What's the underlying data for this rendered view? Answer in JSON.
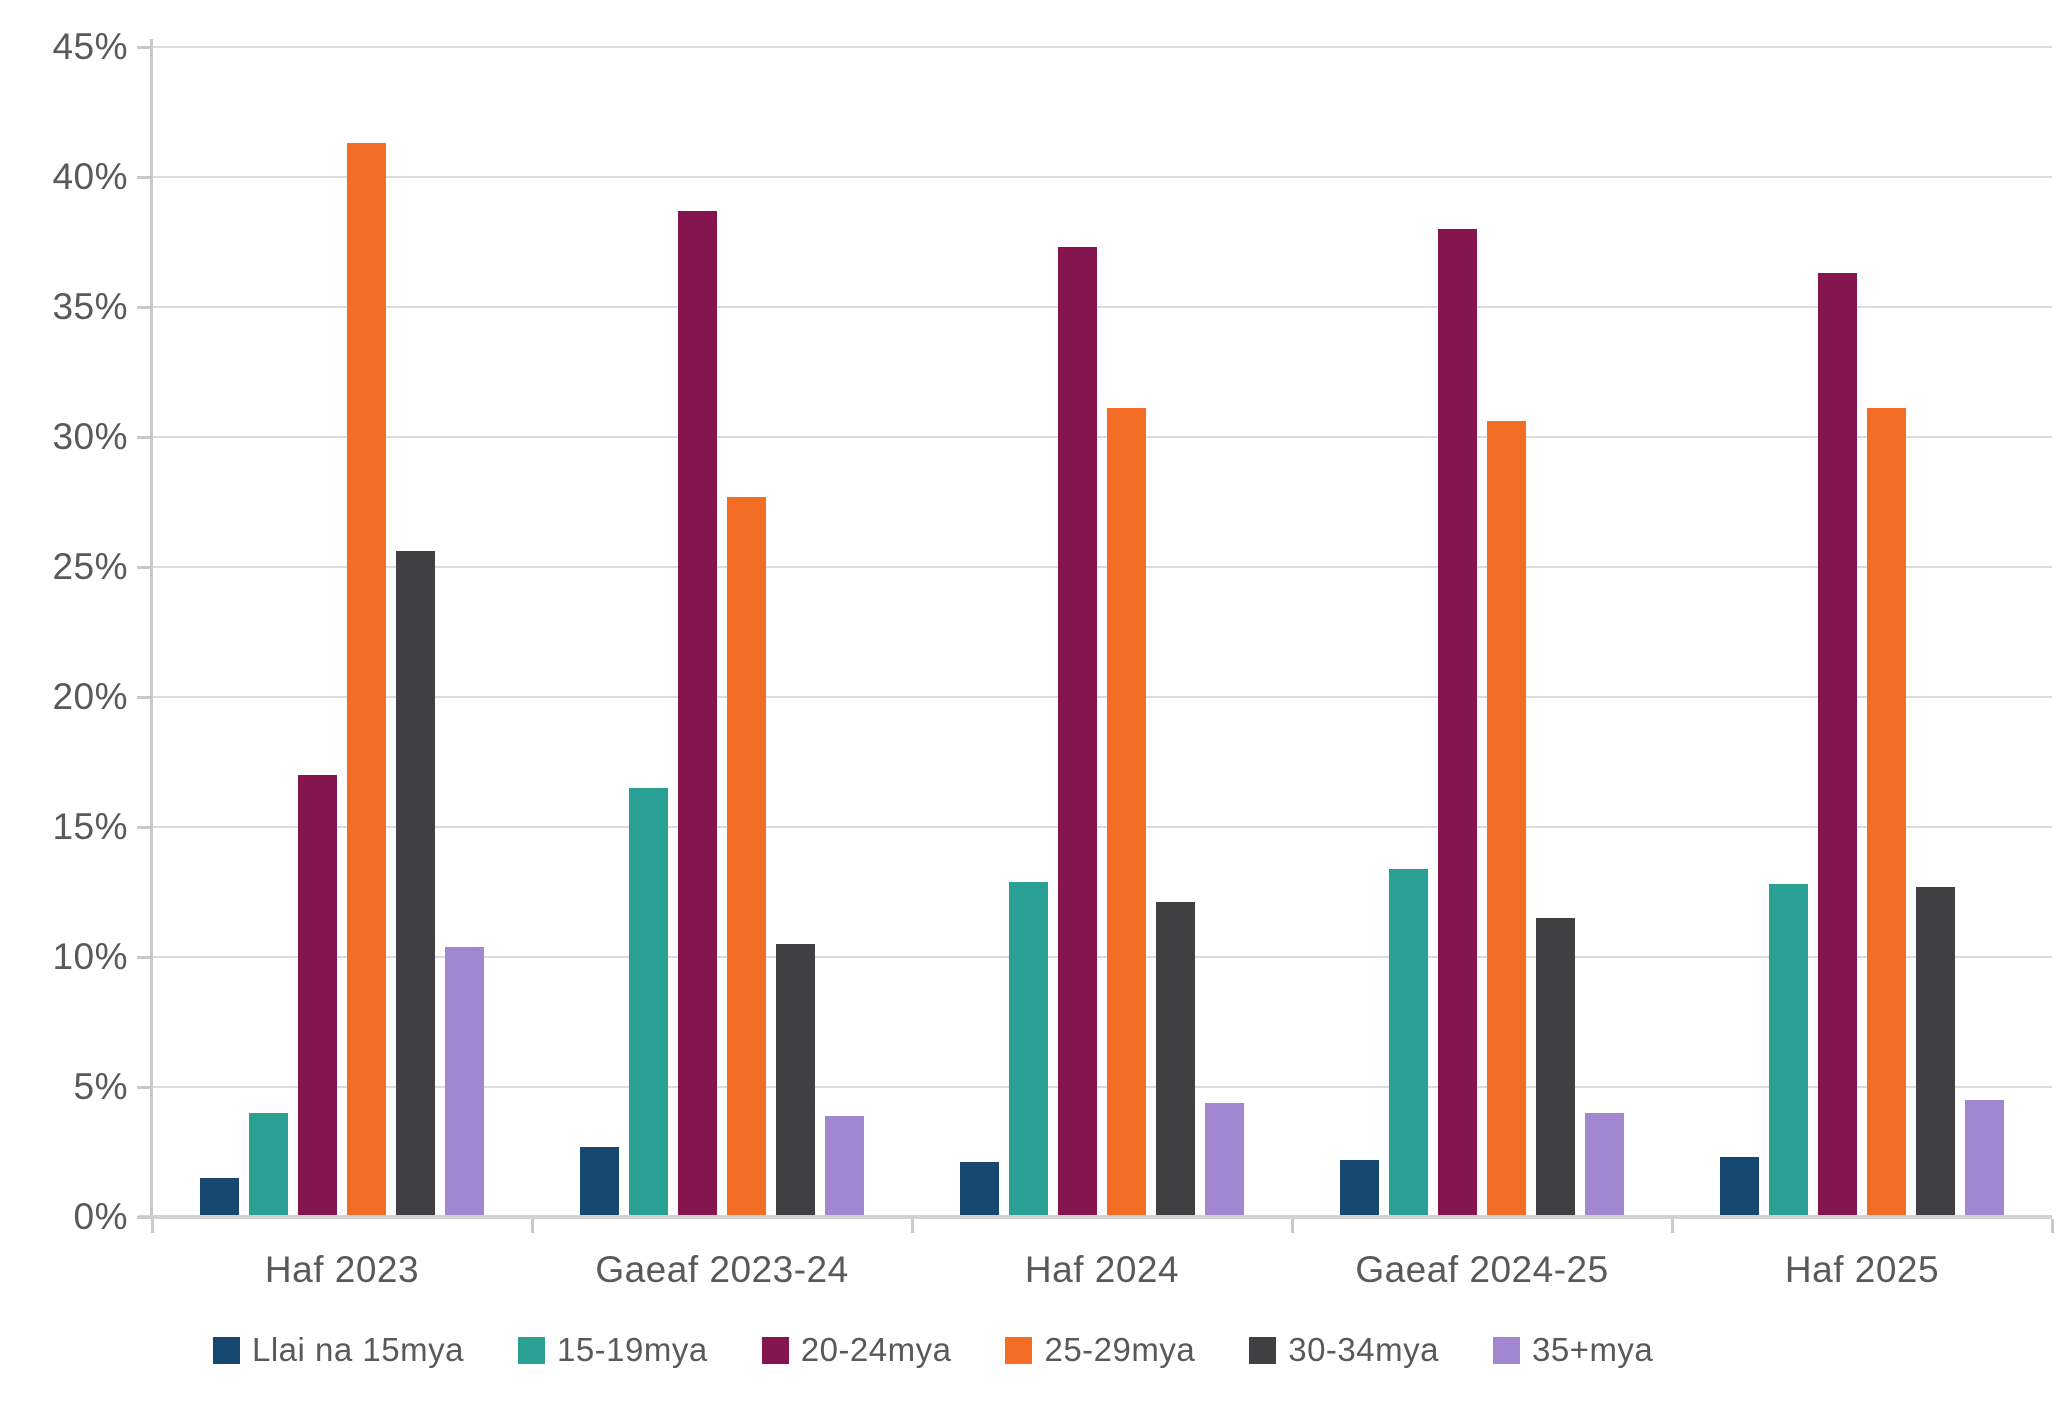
{
  "chart_data": {
    "type": "bar",
    "title": "",
    "xlabel": "",
    "ylabel": "",
    "grid": true,
    "legend_position": "bottom",
    "ylim": [
      0,
      45
    ],
    "ytick_step": 5,
    "ytick_labels": [
      "0%",
      "5%",
      "10%",
      "15%",
      "20%",
      "25%",
      "30%",
      "35%",
      "40%",
      "45%"
    ],
    "categories": [
      "Haf 2023",
      "Gaeaf 2023-24",
      "Haf 2024",
      "Gaeaf 2024-25",
      "Haf 2025"
    ],
    "series": [
      {
        "name": "Llai na 15mya",
        "color": "#17486F",
        "values": [
          1.5,
          2.7,
          2.1,
          2.2,
          2.3
        ]
      },
      {
        "name": "15-19mya",
        "color": "#2AA094",
        "values": [
          4.0,
          16.5,
          12.9,
          13.4,
          12.8
        ]
      },
      {
        "name": "20-24mya",
        "color": "#85154F",
        "values": [
          17.0,
          38.7,
          37.3,
          38.0,
          36.3
        ]
      },
      {
        "name": "25-29mya",
        "color": "#F36D24",
        "values": [
          41.3,
          27.7,
          31.1,
          30.6,
          31.1
        ]
      },
      {
        "name": "30-34mya",
        "color": "#404042",
        "values": [
          25.6,
          10.5,
          12.1,
          11.5,
          12.7
        ]
      },
      {
        "name": "35+mya",
        "color": "#A087D0",
        "values": [
          10.4,
          3.9,
          4.4,
          4.0,
          4.5
        ]
      }
    ]
  },
  "style_colors": {
    "gridline": "#DBDBDB",
    "axis_line": "#C9C9C9",
    "baseline": "#D2D2D2",
    "label_text": "#595959"
  }
}
